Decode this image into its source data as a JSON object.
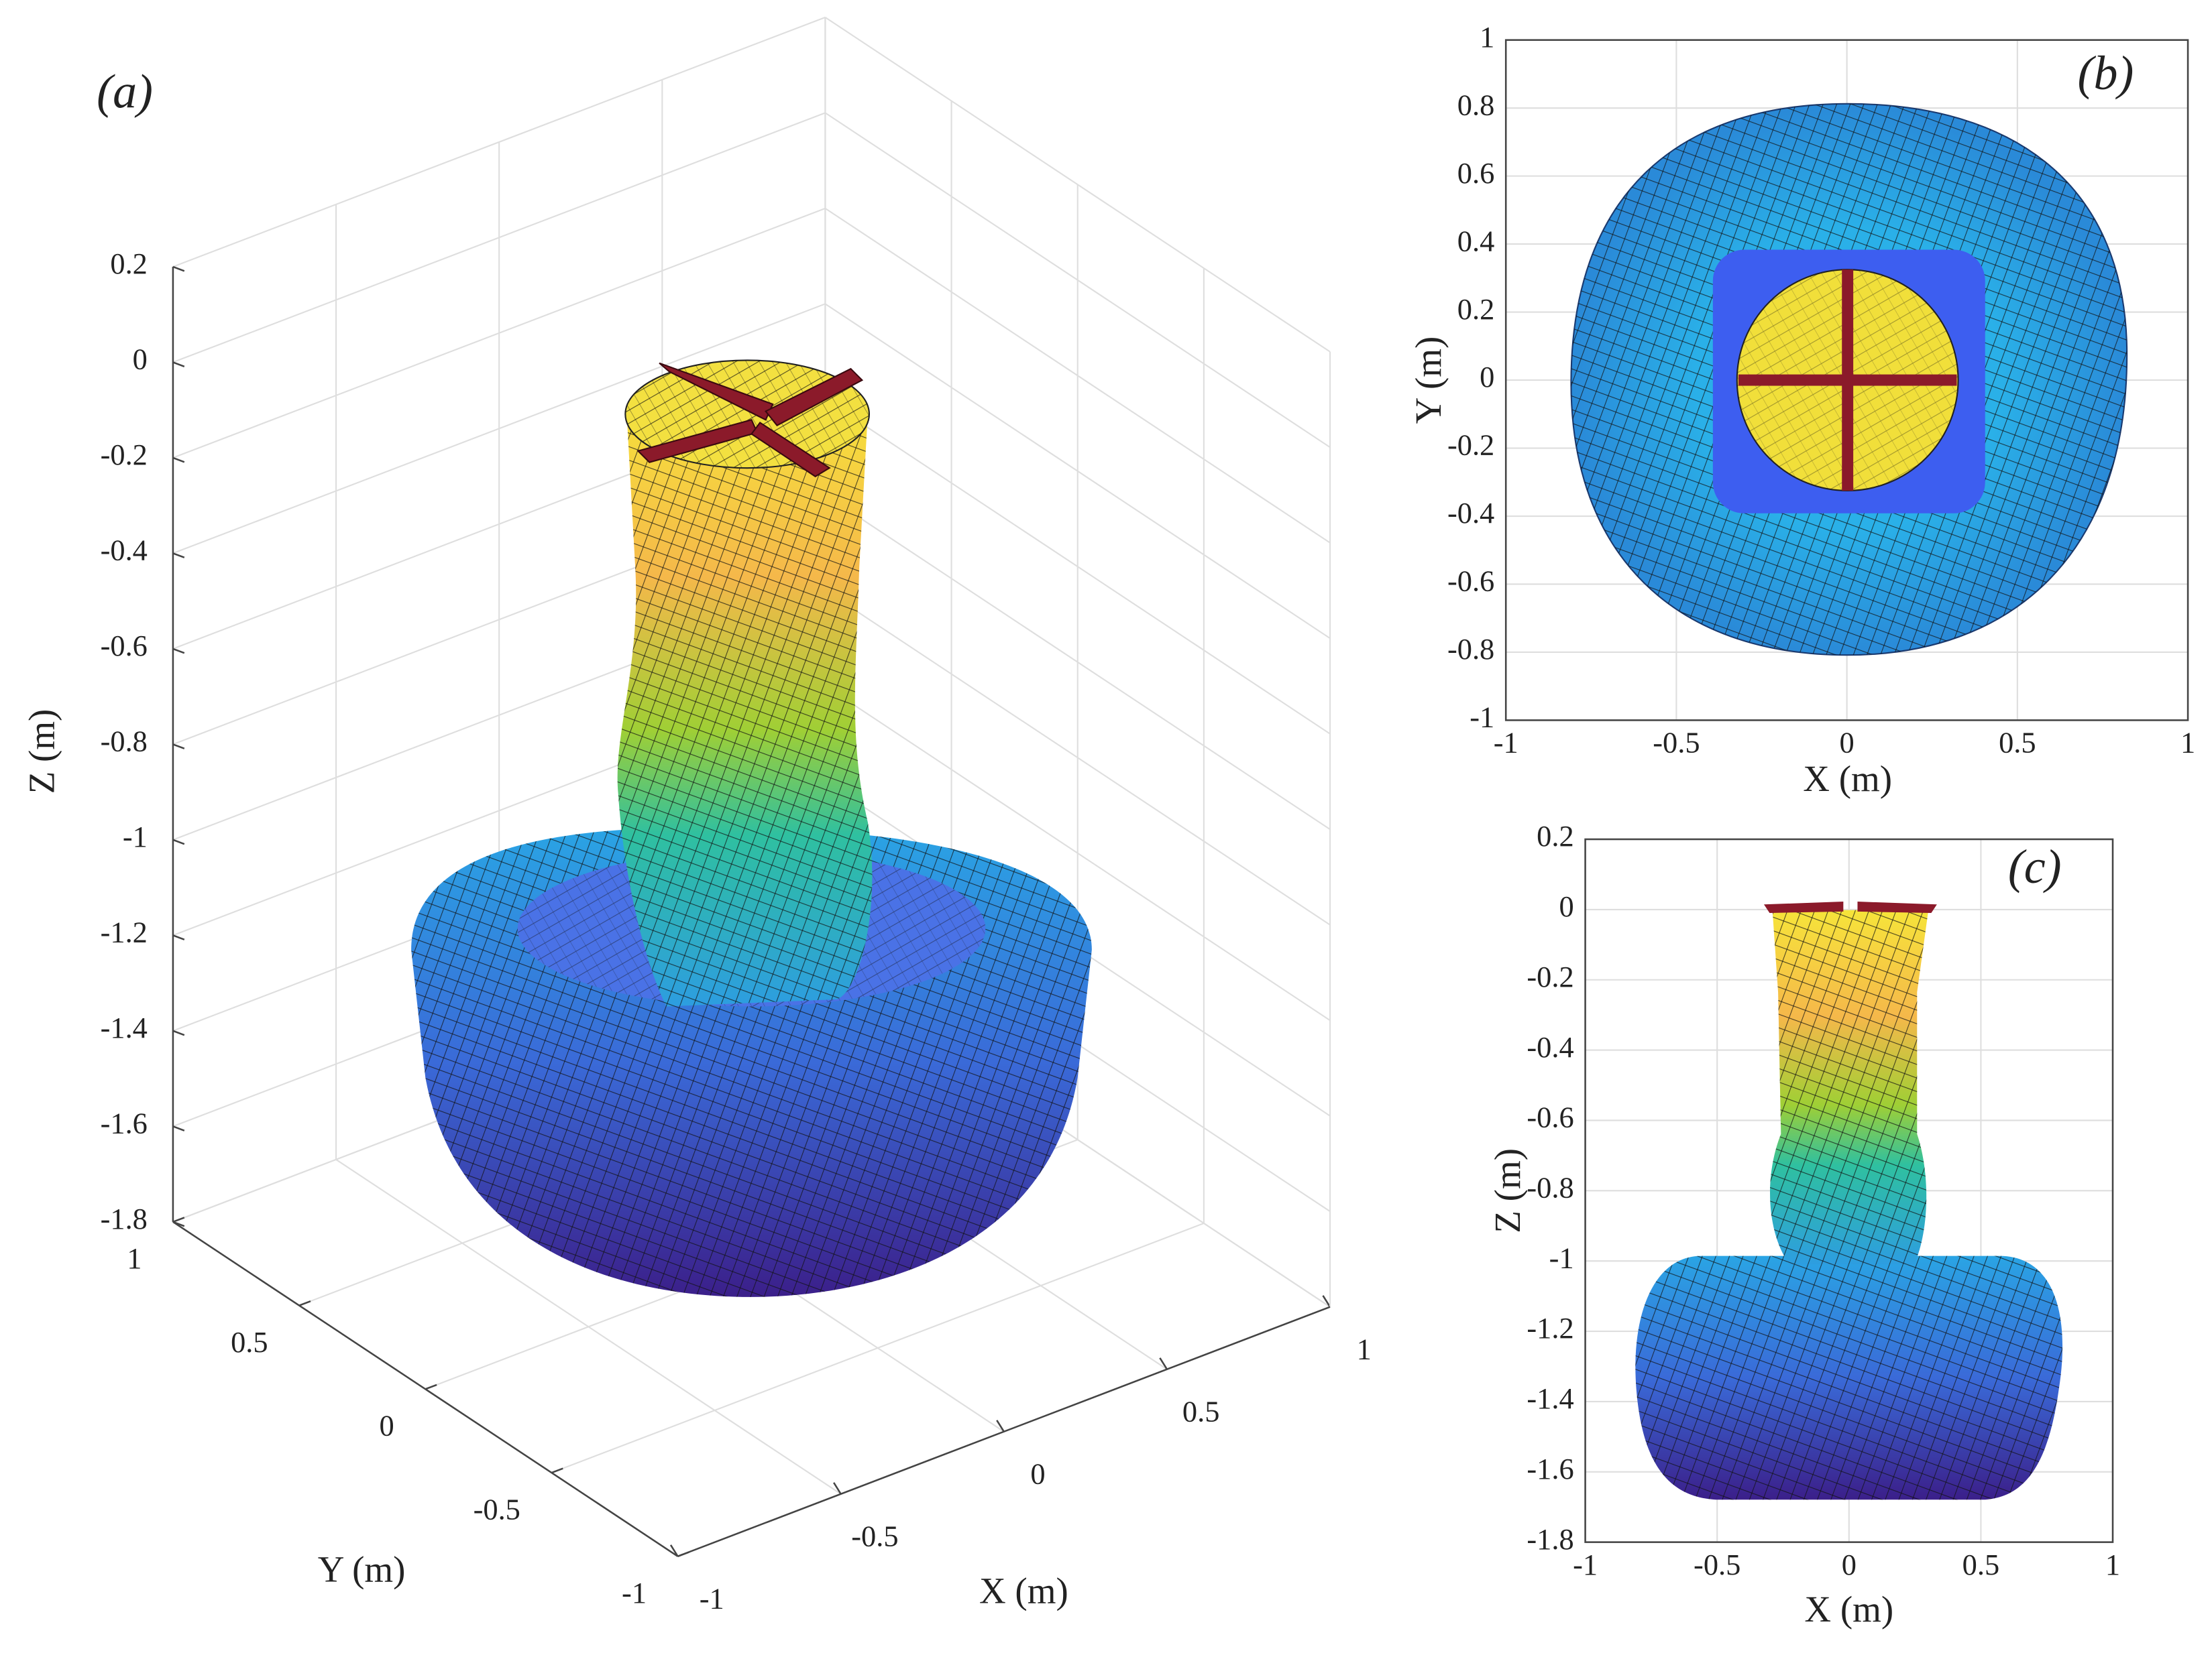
{
  "panels": [
    {
      "label": "(a)",
      "x_axis": {
        "label": "X (m)",
        "ticks": [
          -1,
          -0.5,
          0,
          0.5,
          1
        ]
      },
      "y_axis": {
        "label": "Y (m)",
        "ticks": [
          1,
          0.5,
          0,
          -0.5,
          -1
        ]
      },
      "z_axis": {
        "label": "Z (m)",
        "ticks": [
          0.2,
          0,
          -0.2,
          -0.4,
          -0.6,
          -0.8,
          -1,
          -1.2,
          -1.4,
          -1.6,
          -1.8
        ]
      }
    },
    {
      "label": "(b)",
      "x_axis": {
        "label": "X (m)",
        "ticks": [
          -1,
          -0.5,
          0,
          0.5,
          1
        ]
      },
      "y_axis": {
        "label": "Y (m)",
        "ticks": [
          1,
          0.8,
          0.6,
          0.4,
          0.2,
          0,
          -0.2,
          -0.4,
          -0.6,
          -0.8,
          -1
        ]
      }
    },
    {
      "label": "(c)",
      "x_axis": {
        "label": "X (m)",
        "ticks": [
          -1,
          -0.5,
          0,
          0.5,
          1
        ]
      },
      "z_axis": {
        "label": "Z (m)",
        "ticks": [
          0.2,
          0,
          -0.2,
          -0.4,
          -0.6,
          -0.8,
          -1,
          -1.2,
          -1.4,
          -1.6,
          -1.8
        ]
      }
    }
  ]
}
